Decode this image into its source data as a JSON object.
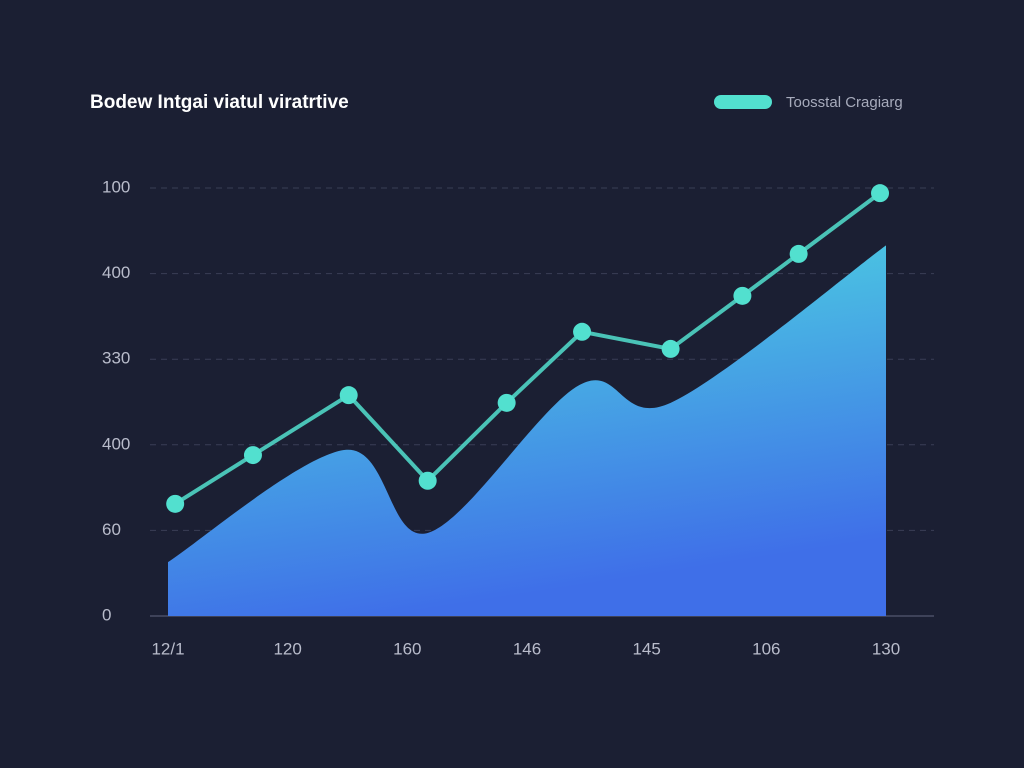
{
  "chart_data": {
    "type": "line",
    "title": "Bodew Intgai viatul viratrtive",
    "xlim": [
      0,
      6
    ],
    "xticks": [
      {
        "value": 0,
        "label": "12/1"
      },
      {
        "value": 1,
        "label": "120"
      },
      {
        "value": 2,
        "label": "160"
      },
      {
        "value": 3,
        "label": "146"
      },
      {
        "value": 4,
        "label": "145"
      },
      {
        "value": 5,
        "label": "106"
      },
      {
        "value": 6,
        "label": "130"
      }
    ],
    "ylim": [
      0,
      500
    ],
    "yticks": [
      0,
      {
        "value": 100,
        "label": "60"
      },
      {
        "value": 200,
        "label": "400"
      },
      {
        "value": 300,
        "label": "330"
      },
      {
        "value": 400,
        "label": "400"
      },
      {
        "value": 500,
        "label": "100"
      }
    ],
    "grid": true,
    "legend": "top-right",
    "series": [
      {
        "kind": "area",
        "color": [
          "#4ee0e0",
          "#3f6fe8"
        ],
        "x": [
          0,
          1.48,
          2.17,
          3.44,
          4.2,
          6
        ],
        "values": [
          63,
          194,
          97,
          270,
          249,
          433
        ]
      },
      {
        "name": "Toosstal Cragiarg",
        "color": "#52e0cf",
        "x": [
          0.06,
          0.71,
          1.51,
          2.17,
          2.83,
          3.46,
          4.2,
          4.8,
          5.27,
          5.95
        ],
        "values": [
          131,
          188,
          258,
          158,
          249,
          332,
          312,
          374,
          423,
          494
        ]
      }
    ]
  }
}
